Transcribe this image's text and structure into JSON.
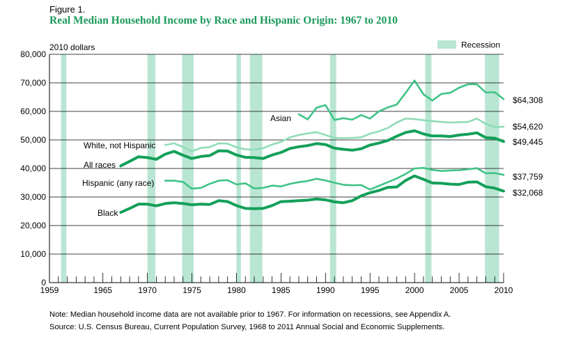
{
  "figure_label": "Figure 1.",
  "title": "Real Median Household Income by Race and Hispanic Origin: 1967 to 2010",
  "note": "Note: Median household income data are not available prior to 1967. For information on recessions, see Appendix A.",
  "source": "Source: U.S. Census Bureau, Current Population Survey, 1968 to 2011 Annual Social and Economic Supplements.",
  "colors": {
    "recession": "#b9e6d3",
    "grid": "#000000",
    "all_races": "#13a059",
    "white": "#8fdcb6",
    "asian": "#3fc386",
    "hispanic": "#3fc386",
    "black": "#13a059"
  },
  "chart_data": {
    "type": "line",
    "title": "Real Median Household Income by Race and Hispanic Origin: 1967 to 2010",
    "ylabel": "2010 dollars",
    "xlabel": "",
    "xlim": [
      1959,
      2010
    ],
    "ylim": [
      0,
      80000
    ],
    "x_ticks": [
      "1959",
      "1965",
      "1970",
      "1975",
      "1980",
      "1985",
      "1990",
      "1995",
      "2000",
      "2005",
      "2010"
    ],
    "x_tick_values": [
      1959,
      1965,
      1970,
      1975,
      1980,
      1985,
      1990,
      1995,
      2000,
      2005,
      2010
    ],
    "y_ticks": [
      "0",
      "10,000",
      "20,000",
      "30,000",
      "40,000",
      "50,000",
      "60,000",
      "70,000",
      "80,000"
    ],
    "y_tick_values": [
      0,
      10000,
      20000,
      30000,
      40000,
      50000,
      60000,
      70000,
      80000
    ],
    "grid": true,
    "legend": {
      "label": "Recession",
      "position": "top-right"
    },
    "recessions": [
      [
        1960.3,
        1960.9
      ],
      [
        1970.0,
        1970.9
      ],
      [
        1973.9,
        1975.2
      ],
      [
        1980.0,
        1980.5
      ],
      [
        1981.5,
        1982.9
      ],
      [
        1990.5,
        1991.2
      ],
      [
        2001.2,
        2001.9
      ],
      [
        2007.9,
        2009.5
      ]
    ],
    "series": [
      {
        "key": "asian",
        "name": "Asian",
        "end_value": "$64,308",
        "x": [
          1987,
          1988,
          1989,
          1990,
          1991,
          1992,
          1993,
          1994,
          1995,
          1996,
          1997,
          1998,
          1999,
          2000,
          2001,
          2002,
          2003,
          2004,
          2005,
          2006,
          2007,
          2008,
          2009,
          2010
        ],
        "values": [
          59000,
          57200,
          61300,
          62200,
          57000,
          57600,
          57100,
          58700,
          57500,
          60000,
          61400,
          62400,
          66500,
          70800,
          66000,
          63800,
          66100,
          66500,
          68300,
          69500,
          69500,
          66600,
          66700,
          64308
        ]
      },
      {
        "key": "white",
        "name": "White, not Hispanic",
        "end_value": "$54,620",
        "x": [
          1972,
          1973,
          1974,
          1975,
          1976,
          1977,
          1978,
          1979,
          1980,
          1981,
          1982,
          1983,
          1984,
          1985,
          1986,
          1987,
          1988,
          1989,
          1990,
          1991,
          1992,
          1993,
          1994,
          1995,
          1996,
          1997,
          1998,
          1999,
          2000,
          2001,
          2002,
          2003,
          2004,
          2005,
          2006,
          2007,
          2008,
          2009,
          2010
        ],
        "values": [
          48200,
          48800,
          47500,
          46000,
          47200,
          47500,
          48800,
          48700,
          47400,
          46700,
          46600,
          47100,
          48400,
          49300,
          50900,
          51700,
          52300,
          52700,
          51700,
          50700,
          50600,
          50700,
          50900,
          52200,
          53000,
          54200,
          56100,
          57500,
          57300,
          56900,
          56600,
          56300,
          56100,
          56200,
          56300,
          57500,
          55600,
          54500,
          54620
        ]
      },
      {
        "key": "all",
        "name": "All races",
        "end_value": "$49,445",
        "x": [
          1967,
          1968,
          1969,
          1970,
          1971,
          1972,
          1973,
          1974,
          1975,
          1976,
          1977,
          1978,
          1979,
          1980,
          1981,
          1982,
          1983,
          1984,
          1985,
          1986,
          1987,
          1988,
          1989,
          1990,
          1991,
          1992,
          1993,
          1994,
          1995,
          1996,
          1997,
          1998,
          1999,
          2000,
          2001,
          2002,
          2003,
          2004,
          2005,
          2006,
          2007,
          2008,
          2009,
          2010
        ],
        "values": [
          40900,
          42500,
          44100,
          43800,
          43200,
          45000,
          46000,
          44600,
          43500,
          44200,
          44500,
          46200,
          46100,
          44700,
          43900,
          43800,
          43500,
          44700,
          45600,
          47000,
          47600,
          48000,
          48700,
          48400,
          47100,
          46700,
          46400,
          46900,
          48200,
          48900,
          49800,
          51300,
          52600,
          53200,
          52100,
          51400,
          51400,
          51200,
          51700,
          52000,
          52500,
          50800,
          50600,
          49445
        ]
      },
      {
        "key": "hispanic",
        "name": "Hispanic (any race)",
        "end_value": "$37,759",
        "x": [
          1972,
          1973,
          1974,
          1975,
          1976,
          1977,
          1978,
          1979,
          1980,
          1981,
          1982,
          1983,
          1984,
          1985,
          1986,
          1987,
          1988,
          1989,
          1990,
          1991,
          1992,
          1993,
          1994,
          1995,
          1996,
          1997,
          1998,
          1999,
          2000,
          2001,
          2002,
          2003,
          2004,
          2005,
          2006,
          2007,
          2008,
          2009,
          2010
        ],
        "values": [
          35700,
          35700,
          35300,
          32900,
          33200,
          34600,
          35700,
          35900,
          34400,
          34800,
          33000,
          33200,
          34000,
          33700,
          34600,
          35200,
          35600,
          36400,
          35800,
          35000,
          34300,
          34100,
          34200,
          32600,
          33900,
          35200,
          36500,
          38100,
          40000,
          40200,
          39500,
          39100,
          39300,
          39400,
          39700,
          40100,
          38300,
          38400,
          37759
        ]
      },
      {
        "key": "black",
        "name": "Black",
        "end_value": "$32,068",
        "x": [
          1967,
          1968,
          1969,
          1970,
          1971,
          1972,
          1973,
          1974,
          1975,
          1976,
          1977,
          1978,
          1979,
          1980,
          1981,
          1982,
          1983,
          1984,
          1985,
          1986,
          1987,
          1988,
          1989,
          1990,
          1991,
          1992,
          1993,
          1994,
          1995,
          1996,
          1997,
          1998,
          1999,
          2000,
          2001,
          2002,
          2003,
          2004,
          2005,
          2006,
          2007,
          2008,
          2009,
          2010
        ],
        "values": [
          24600,
          26000,
          27500,
          27500,
          26900,
          27700,
          28000,
          27700,
          27300,
          27500,
          27400,
          28700,
          28400,
          27000,
          26000,
          25900,
          26000,
          27000,
          28400,
          28500,
          28700,
          28900,
          29300,
          29000,
          28300,
          28000,
          28700,
          30400,
          31500,
          32300,
          33400,
          33500,
          35800,
          37400,
          36200,
          34900,
          34800,
          34500,
          34400,
          35200,
          35300,
          33600,
          33100,
          32068
        ]
      }
    ]
  }
}
